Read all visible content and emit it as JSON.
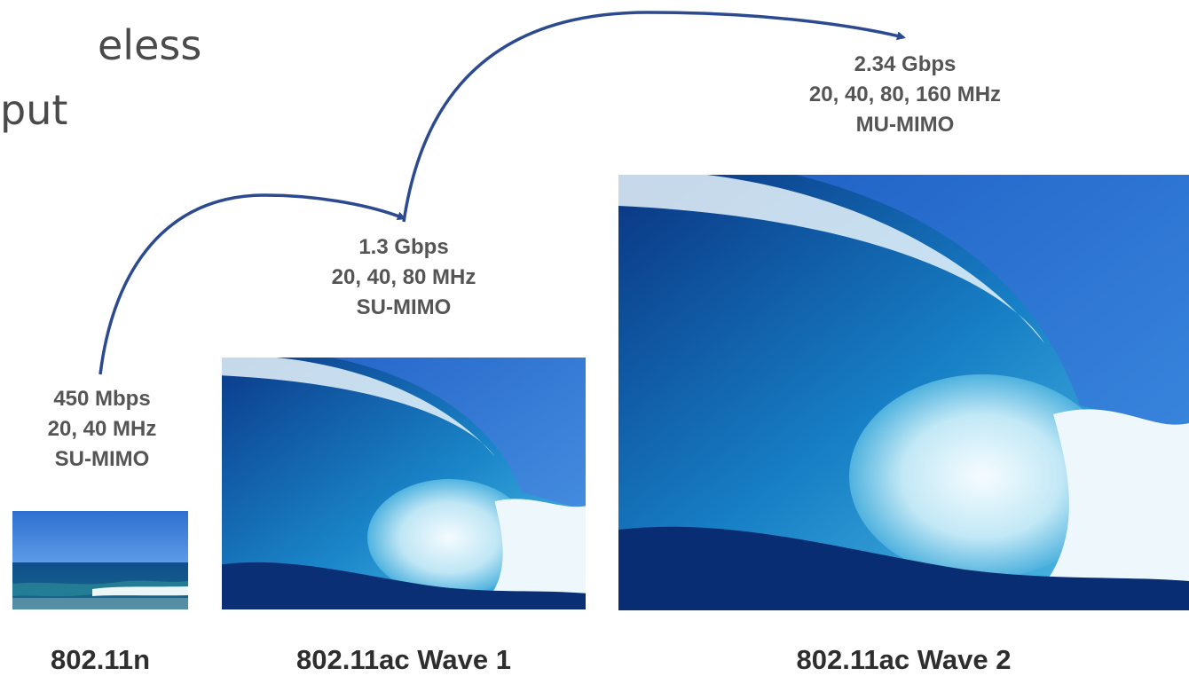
{
  "title": {
    "line1": "eless",
    "line2": "put"
  },
  "colors": {
    "arrow": "#2b4a8f",
    "stat_text": "#555555",
    "caption_text": "#2e2e2e",
    "sky": "#2f77d3",
    "ocean_deep": "#0b3a8a",
    "foam": "#e8f4fb"
  },
  "tiers": [
    {
      "caption": "802.11n",
      "speed": "450 Mbps",
      "channels": "20, 40 MHz",
      "mimo": "SU-MIMO",
      "image": "calm-ocean-photo"
    },
    {
      "caption": "802.11ac Wave 1",
      "speed": "1.3 Gbps",
      "channels": "20, 40, 80 MHz",
      "mimo": "SU-MIMO",
      "image": "breaking-wave-photo"
    },
    {
      "caption": "802.11ac Wave 2",
      "speed": "2.34 Gbps",
      "channels": "20, 40, 80, 160 MHz",
      "mimo": "MU-MIMO",
      "image": "large-breaking-wave-photo"
    }
  ]
}
